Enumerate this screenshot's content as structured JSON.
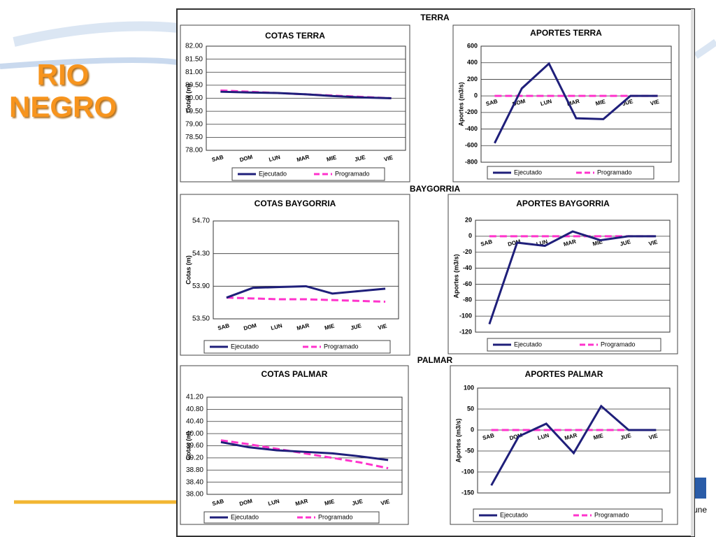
{
  "page": {
    "title": "RIO NEGRO",
    "sections": [
      "TERRA",
      "BAYGORRIA",
      "PALMAR"
    ],
    "logo_text": "os une"
  },
  "chart_data": [
    {
      "type": "line",
      "title": "COTAS TERRA",
      "y_label": "Cotas (m)",
      "categories": [
        "SAB",
        "DOM",
        "LUN",
        "MAR",
        "MIE",
        "JUE",
        "VIE"
      ],
      "series": [
        {
          "name": "Ejecutado",
          "color": "#1f1f7a",
          "values": [
            80.25,
            80.22,
            80.2,
            80.15,
            80.08,
            80.03,
            80.0
          ]
        },
        {
          "name": "Programado",
          "color": "#ff33cc",
          "values": [
            80.3,
            80.25,
            80.2,
            80.15,
            80.1,
            80.05,
            80.0
          ]
        }
      ],
      "ylim": [
        78,
        82
      ],
      "yticks": [
        {
          "value": 78,
          "label": "78.00"
        },
        {
          "value": 78.5,
          "label": "78.50"
        },
        {
          "value": 79,
          "label": "79.00"
        },
        {
          "value": 79.5,
          "label": "79.50"
        },
        {
          "value": 80,
          "label": "80.00"
        },
        {
          "value": 80.5,
          "label": "80.50"
        },
        {
          "value": 81,
          "label": "81.00"
        },
        {
          "value": 81.5,
          "label": "81.50"
        },
        {
          "value": 82,
          "label": "82.00"
        }
      ],
      "grid": true
    },
    {
      "type": "line",
      "title": "APORTES TERRA",
      "y_label": "Aportes (m3/s)",
      "categories": [
        "SAB",
        "DOM",
        "LUN",
        "MAR",
        "MIE",
        "JUE",
        "VIE"
      ],
      "series": [
        {
          "name": "Ejecutado",
          "color": "#1f1f7a",
          "values": [
            -570,
            90,
            390,
            -270,
            -280,
            0,
            0
          ]
        },
        {
          "name": "Programado",
          "color": "#ff33cc",
          "values": [
            0,
            0,
            0,
            0,
            0,
            0,
            0
          ]
        }
      ],
      "ylim": [
        -800,
        600
      ],
      "yticks": [
        -800,
        -600,
        -400,
        -200,
        0,
        200,
        400,
        600
      ],
      "grid": true
    },
    {
      "type": "line",
      "title": "COTAS BAYGORRIA",
      "y_label": "Cotas (m)",
      "categories": [
        "SAB",
        "DOM",
        "LUN",
        "MAR",
        "MIE",
        "JUE",
        "VIE"
      ],
      "series": [
        {
          "name": "Ejecutado",
          "color": "#1f1f7a",
          "values": [
            53.76,
            53.88,
            53.89,
            53.9,
            53.81,
            53.84,
            53.87
          ]
        },
        {
          "name": "Programado",
          "color": "#ff33cc",
          "values": [
            53.76,
            53.75,
            53.74,
            53.74,
            53.73,
            53.72,
            53.71
          ]
        }
      ],
      "ylim": [
        53.5,
        54.7
      ],
      "yticks": [
        {
          "value": 53.5,
          "label": "53.50"
        },
        {
          "value": 53.9,
          "label": "53.90"
        },
        {
          "value": 54.3,
          "label": "54.30"
        },
        {
          "value": 54.7,
          "label": "54.70"
        }
      ],
      "grid": true
    },
    {
      "type": "line",
      "title": "APORTES BAYGORRIA",
      "y_label": "Aportes (m3/s)",
      "categories": [
        "SAB",
        "DOM",
        "LUN",
        "MAR",
        "MIE",
        "JUE",
        "VIE"
      ],
      "series": [
        {
          "name": "Ejecutado",
          "color": "#1f1f7a",
          "values": [
            -110,
            -8,
            -12,
            6,
            -5,
            0,
            0
          ]
        },
        {
          "name": "Programado",
          "color": "#ff33cc",
          "values": [
            0,
            0,
            0,
            0,
            0,
            0,
            0
          ]
        }
      ],
      "ylim": [
        -120,
        20
      ],
      "yticks": [
        -120,
        -100,
        -80,
        -60,
        -40,
        -20,
        0,
        20
      ],
      "grid": true
    },
    {
      "type": "line",
      "title": "COTAS PALMAR",
      "y_label": "Cotas (m)",
      "categories": [
        "SAB",
        "DOM",
        "LUN",
        "MAR",
        "MIE",
        "JUE",
        "VIE"
      ],
      "series": [
        {
          "name": "Ejecutado",
          "color": "#1f1f7a",
          "values": [
            39.72,
            39.55,
            39.45,
            39.4,
            39.35,
            39.25,
            39.13
          ]
        },
        {
          "name": "Programado",
          "color": "#ff33cc",
          "values": [
            39.78,
            39.65,
            39.5,
            39.35,
            39.2,
            39.05,
            38.86
          ]
        }
      ],
      "ylim": [
        38,
        41.2
      ],
      "yticks": [
        {
          "value": 38,
          "label": "38.00"
        },
        {
          "value": 38.4,
          "label": "38.40"
        },
        {
          "value": 38.8,
          "label": "38.80"
        },
        {
          "value": 39.2,
          "label": "39.20"
        },
        {
          "value": 39.6,
          "label": "39.60"
        },
        {
          "value": 40,
          "label": "40.00"
        },
        {
          "value": 40.4,
          "label": "40.40"
        },
        {
          "value": 40.8,
          "label": "40.80"
        },
        {
          "value": 41.2,
          "label": "41.20"
        }
      ],
      "grid": true
    },
    {
      "type": "line",
      "title": "APORTES PALMAR",
      "y_label": "Aportes (m3/s)",
      "categories": [
        "SAB",
        "DOM",
        "LUN",
        "MAR",
        "MIE",
        "JUE",
        "VIE"
      ],
      "series": [
        {
          "name": "Ejecutado",
          "color": "#1f1f7a",
          "values": [
            -132,
            -15,
            15,
            -55,
            57,
            0,
            0
          ]
        },
        {
          "name": "Programado",
          "color": "#ff33cc",
          "values": [
            0,
            0,
            0,
            0,
            0,
            0,
            0
          ]
        }
      ],
      "ylim": [
        -150,
        100
      ],
      "yticks": [
        -150,
        -100,
        -50,
        0,
        50,
        100
      ],
      "grid": true
    }
  ]
}
